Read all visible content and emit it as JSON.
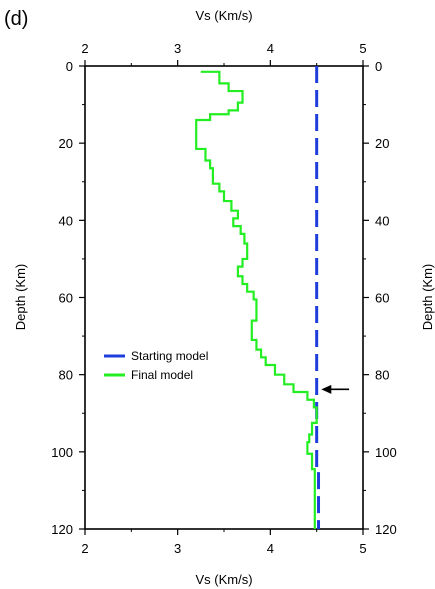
{
  "panel_label": "(d)",
  "chart_data": {
    "type": "line",
    "title": "",
    "xlabel": "Vs (Km/s)",
    "ylabel": "Depth (Km)",
    "xlim": [
      2,
      5
    ],
    "ylim": [
      0,
      120
    ],
    "y_inverted": true,
    "x_axis_position": "top and bottom",
    "y_axis_position": "left and right",
    "grid": false,
    "legend_position": "lower-left",
    "x_ticks": [
      "2",
      "3",
      "4",
      "5"
    ],
    "y_ticks": [
      "0",
      "20",
      "40",
      "60",
      "80",
      "100",
      "120"
    ],
    "series": [
      {
        "name": "Starting model",
        "color": "#1f3ddb",
        "style": "dashed",
        "points": [
          [
            4.5,
            0
          ],
          [
            4.5,
            104
          ],
          [
            4.52,
            104
          ],
          [
            4.52,
            120
          ]
        ]
      },
      {
        "name": "Final model",
        "color": "#22ee22",
        "style": "step",
        "points": [
          [
            3.25,
            1.5
          ],
          [
            3.45,
            1.5
          ],
          [
            3.45,
            4.5
          ],
          [
            3.55,
            4.5
          ],
          [
            3.55,
            6.5
          ],
          [
            3.7,
            6.5
          ],
          [
            3.7,
            9.5
          ],
          [
            3.65,
            9.5
          ],
          [
            3.65,
            11.5
          ],
          [
            3.55,
            11.5
          ],
          [
            3.55,
            12.5
          ],
          [
            3.35,
            12.5
          ],
          [
            3.35,
            14
          ],
          [
            3.2,
            14
          ],
          [
            3.2,
            21.5
          ],
          [
            3.3,
            21.5
          ],
          [
            3.3,
            24.5
          ],
          [
            3.35,
            24.5
          ],
          [
            3.35,
            26.5
          ],
          [
            3.38,
            26.5
          ],
          [
            3.38,
            30.5
          ],
          [
            3.45,
            30.5
          ],
          [
            3.45,
            32.5
          ],
          [
            3.5,
            32.5
          ],
          [
            3.5,
            35
          ],
          [
            3.58,
            35
          ],
          [
            3.58,
            37.5
          ],
          [
            3.65,
            37.5
          ],
          [
            3.65,
            39.5
          ],
          [
            3.6,
            39.5
          ],
          [
            3.6,
            41.5
          ],
          [
            3.68,
            41.5
          ],
          [
            3.68,
            43.5
          ],
          [
            3.72,
            43.5
          ],
          [
            3.72,
            46
          ],
          [
            3.75,
            46
          ],
          [
            3.75,
            50
          ],
          [
            3.7,
            50
          ],
          [
            3.7,
            52
          ],
          [
            3.65,
            52
          ],
          [
            3.65,
            54.5
          ],
          [
            3.7,
            54.5
          ],
          [
            3.7,
            56.5
          ],
          [
            3.75,
            56.5
          ],
          [
            3.75,
            58.5
          ],
          [
            3.82,
            58.5
          ],
          [
            3.82,
            60.5
          ],
          [
            3.85,
            60.5
          ],
          [
            3.85,
            66
          ],
          [
            3.8,
            66
          ],
          [
            3.8,
            71
          ],
          [
            3.85,
            71
          ],
          [
            3.85,
            73.5
          ],
          [
            3.9,
            73.5
          ],
          [
            3.9,
            75.5
          ],
          [
            3.95,
            75.5
          ],
          [
            3.95,
            77.5
          ],
          [
            4.05,
            77.5
          ],
          [
            4.05,
            80
          ],
          [
            4.15,
            80
          ],
          [
            4.15,
            82.5
          ],
          [
            4.25,
            82.5
          ],
          [
            4.25,
            84.5
          ],
          [
            4.4,
            84.5
          ],
          [
            4.4,
            86.5
          ],
          [
            4.47,
            86.5
          ],
          [
            4.47,
            88.5
          ],
          [
            4.5,
            88.5
          ],
          [
            4.5,
            92.5
          ],
          [
            4.45,
            92.5
          ],
          [
            4.45,
            95.5
          ],
          [
            4.42,
            95.5
          ],
          [
            4.42,
            97.5
          ],
          [
            4.4,
            97.5
          ],
          [
            4.4,
            100.5
          ],
          [
            4.45,
            100.5
          ],
          [
            4.45,
            104.5
          ],
          [
            4.48,
            104.5
          ],
          [
            4.48,
            120
          ]
        ]
      }
    ],
    "annotations": [
      {
        "type": "arrow",
        "x": 4.85,
        "y": 83.8,
        "points_to": "left"
      }
    ]
  }
}
